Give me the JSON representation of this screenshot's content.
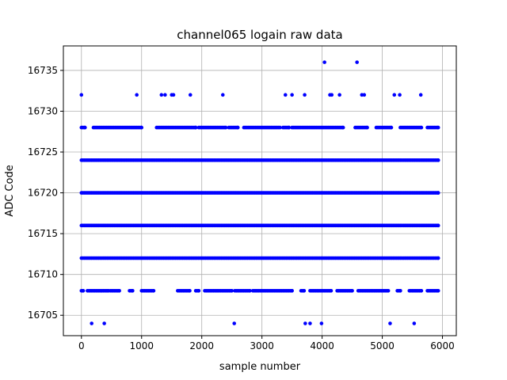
{
  "chart_data": {
    "type": "scatter",
    "title": "channel065 logain raw data",
    "xlabel": "sample number",
    "ylabel": "ADC Code",
    "xlim": [
      -300,
      6230
    ],
    "ylim": [
      16702.5,
      16738.0
    ],
    "xticks": [
      0,
      1000,
      2000,
      3000,
      4000,
      5000,
      6000
    ],
    "yticks": [
      16705,
      16710,
      16715,
      16720,
      16725,
      16730,
      16735
    ],
    "grid": true,
    "marker_color": "#0000ff",
    "x_max_sample": 5930,
    "levels": [
      {
        "y": 16720,
        "x_ranges": [
          [
            0,
            5930
          ]
        ]
      },
      {
        "y": 16716,
        "x_ranges": [
          [
            0,
            5930
          ]
        ]
      },
      {
        "y": 16724,
        "x_ranges": [
          [
            0,
            5930
          ]
        ]
      },
      {
        "y": 16712,
        "x_ranges": [
          [
            0,
            5930
          ]
        ]
      },
      {
        "y": 16728,
        "x_ranges": [
          [
            0,
            60
          ],
          [
            200,
            1000
          ],
          [
            1250,
            1900
          ],
          [
            1950,
            2400
          ],
          [
            2450,
            2600
          ],
          [
            2700,
            3300
          ],
          [
            3350,
            3450
          ],
          [
            3500,
            4350
          ],
          [
            4550,
            4750
          ],
          [
            4900,
            5150
          ],
          [
            5300,
            5650
          ],
          [
            5750,
            5930
          ]
        ]
      },
      {
        "y": 16708,
        "x_ranges": [
          [
            0,
            30
          ],
          [
            100,
            450
          ],
          [
            480,
            630
          ],
          [
            800,
            850
          ],
          [
            1000,
            1200
          ],
          [
            1600,
            1800
          ],
          [
            1900,
            1950
          ],
          [
            2050,
            2500
          ],
          [
            2550,
            2800
          ],
          [
            2850,
            3500
          ],
          [
            3650,
            3700
          ],
          [
            3800,
            4150
          ],
          [
            4250,
            4500
          ],
          [
            4600,
            5100
          ],
          [
            5250,
            5300
          ],
          [
            5450,
            5650
          ],
          [
            5750,
            5930
          ]
        ]
      }
    ],
    "points": [
      {
        "x": 0,
        "y": 16732
      },
      {
        "x": 920,
        "y": 16732
      },
      {
        "x": 1330,
        "y": 16732
      },
      {
        "x": 1390,
        "y": 16732
      },
      {
        "x": 1500,
        "y": 16732
      },
      {
        "x": 1530,
        "y": 16732
      },
      {
        "x": 1810,
        "y": 16732
      },
      {
        "x": 2350,
        "y": 16732
      },
      {
        "x": 3390,
        "y": 16732
      },
      {
        "x": 3500,
        "y": 16732
      },
      {
        "x": 3710,
        "y": 16732
      },
      {
        "x": 4130,
        "y": 16732
      },
      {
        "x": 4160,
        "y": 16732
      },
      {
        "x": 4290,
        "y": 16732
      },
      {
        "x": 4660,
        "y": 16732
      },
      {
        "x": 4700,
        "y": 16732
      },
      {
        "x": 5200,
        "y": 16732
      },
      {
        "x": 5290,
        "y": 16732
      },
      {
        "x": 5640,
        "y": 16732
      },
      {
        "x": 4040,
        "y": 16736
      },
      {
        "x": 4580,
        "y": 16736
      },
      {
        "x": 170,
        "y": 16704
      },
      {
        "x": 380,
        "y": 16704
      },
      {
        "x": 2540,
        "y": 16704
      },
      {
        "x": 3720,
        "y": 16704
      },
      {
        "x": 3800,
        "y": 16704
      },
      {
        "x": 3990,
        "y": 16704
      },
      {
        "x": 5130,
        "y": 16704
      },
      {
        "x": 5530,
        "y": 16704
      }
    ]
  }
}
